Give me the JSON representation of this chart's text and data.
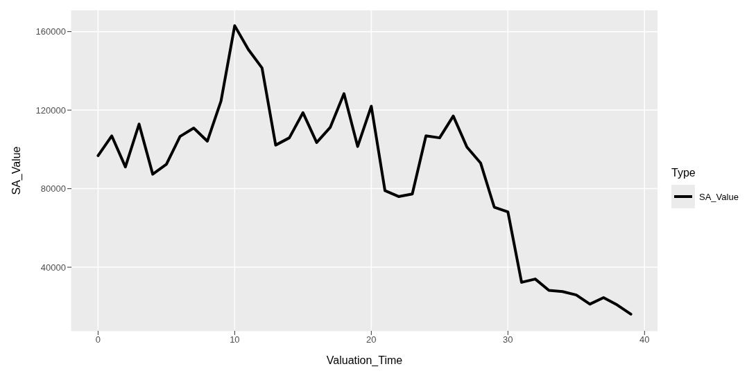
{
  "chart_data": {
    "type": "line",
    "xlabel": "Valuation_Time",
    "ylabel": "SA_Value",
    "legend_title": "Type",
    "legend": "right",
    "x": [
      0,
      1,
      2,
      3,
      4,
      5,
      6,
      7,
      8,
      9,
      10,
      11,
      12,
      13,
      14,
      15,
      16,
      17,
      18,
      19,
      20,
      21,
      22,
      23,
      24,
      25,
      26,
      27,
      28,
      29,
      30,
      31,
      32,
      33,
      34,
      35,
      36,
      37,
      38,
      39
    ],
    "series": [
      {
        "name": "SA_Value",
        "color": "#000000",
        "values": [
          96800,
          106900,
          91100,
          112900,
          87400,
          92400,
          106600,
          110900,
          104200,
          124700,
          163000,
          150900,
          141500,
          102200,
          105900,
          118700,
          103500,
          111300,
          128400,
          101500,
          122000,
          79000,
          76000,
          77300,
          106900,
          105900,
          117000,
          101200,
          93100,
          70600,
          68200,
          32300,
          34000,
          28200,
          27600,
          25900,
          21200,
          24500,
          20800,
          16100
        ]
      }
    ],
    "xlim": [
      -1.95,
      40.95
    ],
    "xticks": [
      0,
      10,
      20,
      30,
      40
    ],
    "ylim": [
      7600,
      170800
    ],
    "yticks": [
      40000,
      80000,
      120000,
      160000
    ],
    "grid": true,
    "marker": "none",
    "line_style": "solid"
  }
}
